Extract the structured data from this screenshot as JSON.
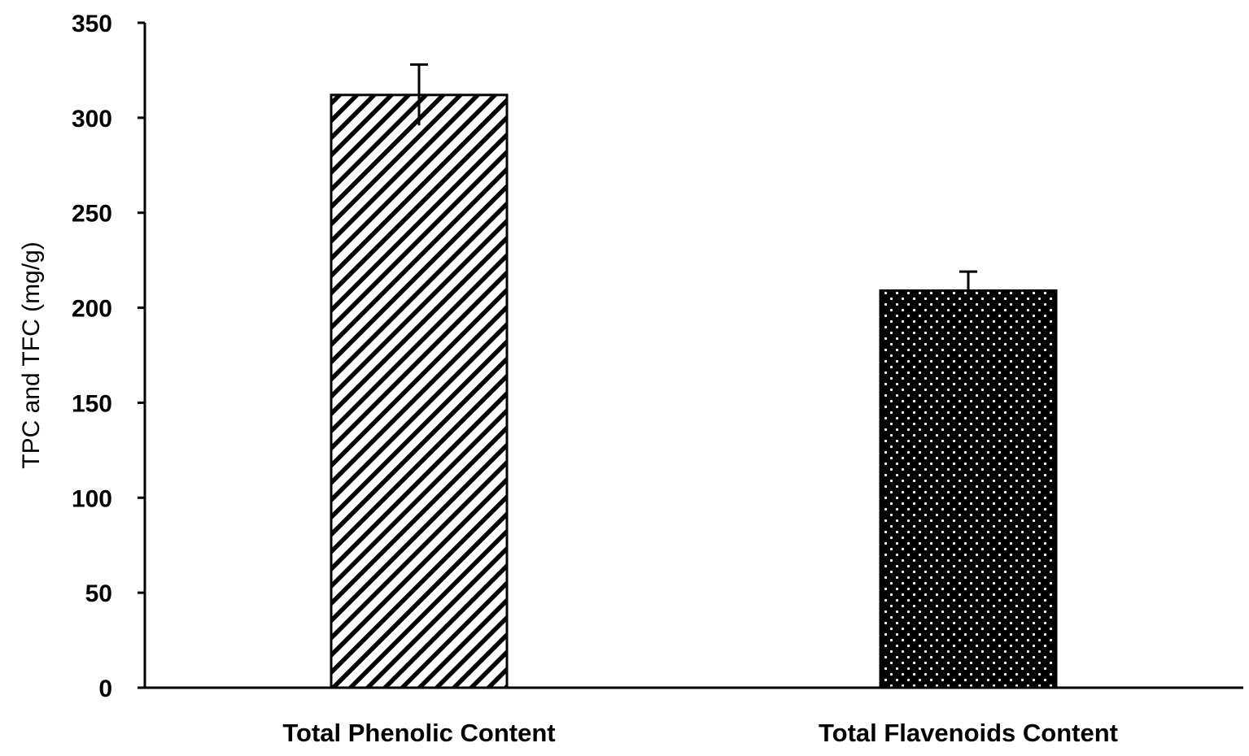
{
  "chart_data": {
    "type": "bar",
    "categories": [
      "Total Phenolic Content",
      "Total Flavenoids Content"
    ],
    "values": [
      312,
      209
    ],
    "error": [
      16,
      10
    ],
    "fills": [
      "diagonal-hatch",
      "black-dotted"
    ],
    "ylabel": "TPC and TFC (mg/g)",
    "xlabel": "",
    "title": "",
    "ylim": [
      0,
      350
    ],
    "yticks": [
      0,
      50,
      100,
      150,
      200,
      250,
      300,
      350
    ],
    "grid": false,
    "legend": "none"
  }
}
